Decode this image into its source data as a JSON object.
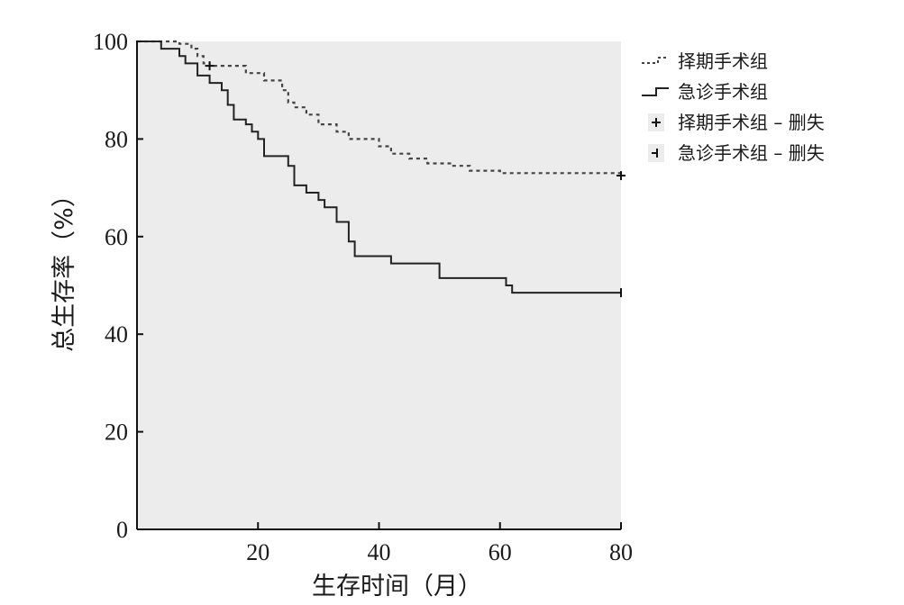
{
  "chart_data": {
    "type": "line",
    "title": "",
    "xlabel": "生存时间（月）",
    "ylabel": "总生存率（%）",
    "xlim": [
      0,
      80
    ],
    "ylim": [
      0,
      100
    ],
    "x_ticks": [
      20,
      40,
      60,
      80
    ],
    "y_ticks": [
      0,
      20,
      40,
      60,
      80,
      100
    ],
    "grid": false,
    "legend_position": "right",
    "plot_background": "#ececec",
    "series": [
      {
        "name": "择期手术组",
        "style": "dotted",
        "color": "#444444",
        "x": [
          0,
          4,
          7,
          9,
          10,
          11,
          12,
          18,
          21,
          24,
          25,
          26,
          28,
          30,
          33,
          35,
          40,
          42,
          45,
          48,
          52,
          55,
          60,
          80
        ],
        "y": [
          100,
          100,
          99.5,
          98.5,
          97,
          95.5,
          95,
          93.5,
          92,
          90,
          87.5,
          86.5,
          85,
          83,
          81.5,
          80,
          78.5,
          77,
          76,
          75,
          74.5,
          73.5,
          73,
          72.5
        ]
      },
      {
        "name": "急诊手术组",
        "style": "solid",
        "color": "#222222",
        "x": [
          0,
          4,
          7,
          8,
          10,
          12,
          14,
          15,
          16,
          17,
          18,
          19,
          20,
          21,
          25,
          26,
          28,
          30,
          31,
          32,
          33,
          35,
          36,
          42,
          50,
          61,
          62,
          80
        ],
        "y": [
          100,
          98.5,
          97,
          95.5,
          93,
          91.5,
          90,
          87,
          84,
          84,
          83,
          81.5,
          80,
          76.5,
          74.5,
          70.5,
          69,
          67.5,
          66,
          66,
          63,
          59,
          56,
          54.5,
          51.5,
          50,
          48.5,
          48.5
        ]
      }
    ],
    "censor_marks": [
      {
        "series": "择期手术组",
        "marker": "plus",
        "points": [
          {
            "x": 12,
            "y": 95
          },
          {
            "x": 80,
            "y": 72.5
          }
        ]
      },
      {
        "series": "急诊手术组",
        "marker": "tick",
        "points": [
          {
            "x": 80,
            "y": 48.5
          }
        ]
      }
    ],
    "legend": [
      {
        "label": "择期手术组",
        "symbol": "dotted-line"
      },
      {
        "label": "急诊手术组",
        "symbol": "step-line"
      },
      {
        "label": "择期手术组 – 删失",
        "symbol": "plus"
      },
      {
        "label": "急诊手术组 – 删失",
        "symbol": "tick"
      }
    ]
  }
}
